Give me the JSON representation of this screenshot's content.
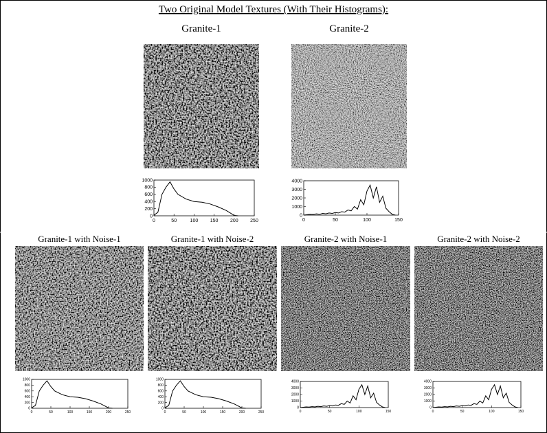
{
  "title": "Two Original Model Textures (With Their Histograms):",
  "images": [
    {
      "label": "Granite-1"
    },
    {
      "label": "Granite-2"
    },
    {
      "label": "Granite-1 with Noise-1"
    },
    {
      "label": "Granite-1 with Noise-2"
    },
    {
      "label": "Granite-2 with Noise-1"
    },
    {
      "label": "Granite-2 with Noise-2"
    }
  ],
  "chart_data": [
    {
      "type": "line",
      "x": [
        0,
        10,
        20,
        30,
        40,
        50,
        60,
        80,
        100,
        120,
        140,
        160,
        180,
        190,
        200,
        210
      ],
      "values": [
        15,
        100,
        600,
        800,
        950,
        750,
        600,
        470,
        400,
        380,
        330,
        250,
        150,
        80,
        10,
        0
      ],
      "xlim": [
        0,
        250
      ],
      "ylim": [
        0,
        1000
      ],
      "xticks": [
        0,
        50,
        100,
        150,
        200,
        250
      ],
      "yticks": [
        0,
        200,
        400,
        600,
        800,
        1000
      ],
      "color": "#000"
    },
    {
      "type": "line",
      "x": [
        0,
        5,
        10,
        15,
        20,
        25,
        30,
        35,
        40,
        45,
        50,
        55,
        60,
        65,
        70,
        75,
        80,
        85,
        90,
        95,
        100,
        105,
        110,
        115,
        120,
        125,
        130,
        135,
        140,
        145
      ],
      "values": [
        0,
        50,
        100,
        80,
        150,
        100,
        200,
        150,
        250,
        200,
        300,
        250,
        400,
        350,
        600,
        500,
        1000,
        700,
        1800,
        1200,
        2800,
        3500,
        2000,
        3300,
        1500,
        2200,
        800,
        400,
        100,
        0
      ],
      "xlim": [
        0,
        150
      ],
      "ylim": [
        0,
        4000
      ],
      "xticks": [
        0,
        50,
        100,
        150
      ],
      "yticks": [
        0,
        1000,
        2000,
        3000,
        4000
      ],
      "color": "#000"
    },
    {
      "type": "line",
      "x": [
        0,
        10,
        20,
        30,
        40,
        50,
        60,
        80,
        100,
        120,
        140,
        160,
        180,
        190,
        200,
        210
      ],
      "values": [
        15,
        100,
        600,
        800,
        950,
        750,
        600,
        470,
        400,
        380,
        330,
        250,
        150,
        80,
        10,
        0
      ],
      "xlim": [
        0,
        250
      ],
      "ylim": [
        0,
        1000
      ],
      "xticks": [
        0,
        50,
        100,
        150,
        200,
        250
      ],
      "yticks": [
        0,
        200,
        400,
        600,
        800,
        1000
      ],
      "color": "#000"
    },
    {
      "type": "line",
      "x": [
        0,
        10,
        20,
        30,
        40,
        50,
        60,
        80,
        100,
        120,
        140,
        160,
        180,
        190,
        200,
        210
      ],
      "values": [
        15,
        100,
        600,
        800,
        950,
        750,
        600,
        470,
        400,
        380,
        330,
        250,
        150,
        80,
        10,
        0
      ],
      "xlim": [
        0,
        250
      ],
      "ylim": [
        0,
        1000
      ],
      "xticks": [
        0,
        50,
        100,
        150,
        200,
        250
      ],
      "yticks": [
        0,
        200,
        400,
        600,
        800,
        1000
      ],
      "color": "#000"
    },
    {
      "type": "line",
      "x": [
        0,
        5,
        10,
        15,
        20,
        25,
        30,
        35,
        40,
        45,
        50,
        55,
        60,
        65,
        70,
        75,
        80,
        85,
        90,
        95,
        100,
        105,
        110,
        115,
        120,
        125,
        130,
        135,
        140,
        145
      ],
      "values": [
        0,
        50,
        100,
        80,
        150,
        100,
        200,
        150,
        250,
        200,
        300,
        250,
        400,
        350,
        600,
        500,
        1000,
        700,
        1800,
        1200,
        2800,
        3500,
        2000,
        3300,
        1500,
        2200,
        800,
        400,
        100,
        0
      ],
      "xlim": [
        0,
        150
      ],
      "ylim": [
        0,
        4000
      ],
      "xticks": [
        0,
        50,
        100,
        150
      ],
      "yticks": [
        0,
        1000,
        2000,
        3000,
        4000
      ],
      "color": "#000"
    },
    {
      "type": "line",
      "x": [
        0,
        5,
        10,
        15,
        20,
        25,
        30,
        35,
        40,
        45,
        50,
        55,
        60,
        65,
        70,
        75,
        80,
        85,
        90,
        95,
        100,
        105,
        110,
        115,
        120,
        125,
        130,
        135,
        140,
        145
      ],
      "values": [
        0,
        50,
        100,
        80,
        150,
        100,
        200,
        150,
        250,
        200,
        300,
        250,
        400,
        350,
        600,
        500,
        1000,
        700,
        1800,
        1200,
        2800,
        3500,
        2000,
        3300,
        1500,
        2200,
        800,
        400,
        100,
        0
      ],
      "xlim": [
        0,
        150
      ],
      "ylim": [
        0,
        4000
      ],
      "xticks": [
        0,
        50,
        100,
        150
      ],
      "yticks": [
        0,
        1000,
        2000,
        3000,
        4000
      ],
      "color": "#000"
    }
  ]
}
